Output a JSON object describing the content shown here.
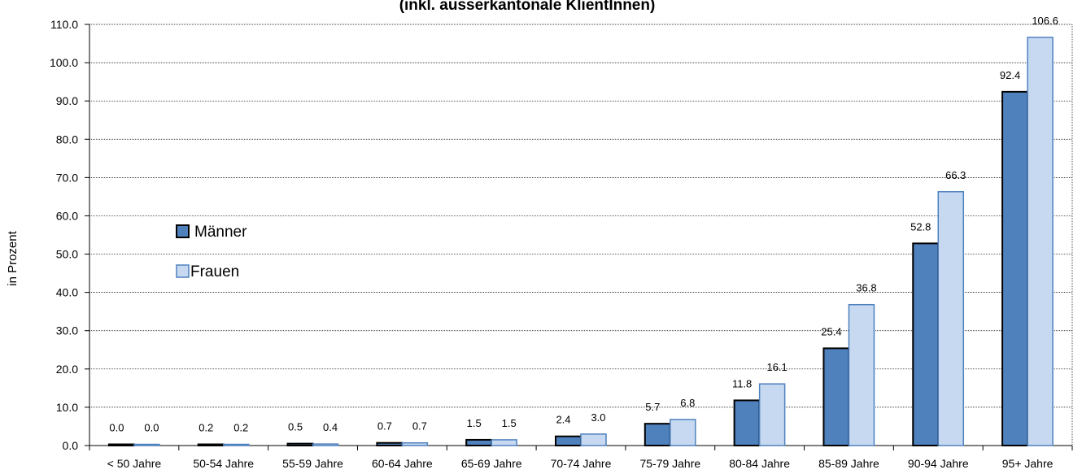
{
  "chart_data": {
    "type": "bar",
    "title": "(inkl. ausserkantonale KlientInnen)",
    "ylabel": "in Prozent",
    "xlabel": "",
    "ylim": [
      0,
      110
    ],
    "ytick_step": 10,
    "ytick_labels": [
      "0.0",
      "10.0",
      "20.0",
      "30.0",
      "40.0",
      "50.0",
      "60.0",
      "70.0",
      "80.0",
      "90.0",
      "100.0",
      "110.0"
    ],
    "grid": true,
    "legend_position": "left",
    "categories": [
      "< 50 Jahre",
      "50-54 Jahre",
      "55-59 Jahre",
      "60-64 Jahre",
      "65-69 Jahre",
      "70-74 Jahre",
      "75-79 Jahre",
      "80-84 Jahre",
      "85-89 Jahre",
      "90-94 Jahre",
      "95+ Jahre"
    ],
    "series": [
      {
        "name": "Männer",
        "color": "#4f81bd",
        "values": [
          0.0,
          0.2,
          0.5,
          0.7,
          1.5,
          2.4,
          5.7,
          11.8,
          25.4,
          52.8,
          92.4
        ],
        "labels": [
          "0.0",
          "0.2",
          "0.5",
          "0.7",
          "1.5",
          "2.4",
          "5.7",
          "11.8",
          "25.4",
          "52.8",
          "92.4"
        ]
      },
      {
        "name": "Frauen",
        "color": "#c6d9f1",
        "values": [
          0.0,
          0.2,
          0.4,
          0.7,
          1.5,
          3.0,
          6.8,
          16.1,
          36.8,
          66.3,
          106.6
        ],
        "labels": [
          "0.0",
          "0.2",
          "0.4",
          "0.7",
          "1.5",
          "3.0",
          "6.8",
          "16.1",
          "36.8",
          "66.3",
          "106.6"
        ]
      }
    ]
  }
}
